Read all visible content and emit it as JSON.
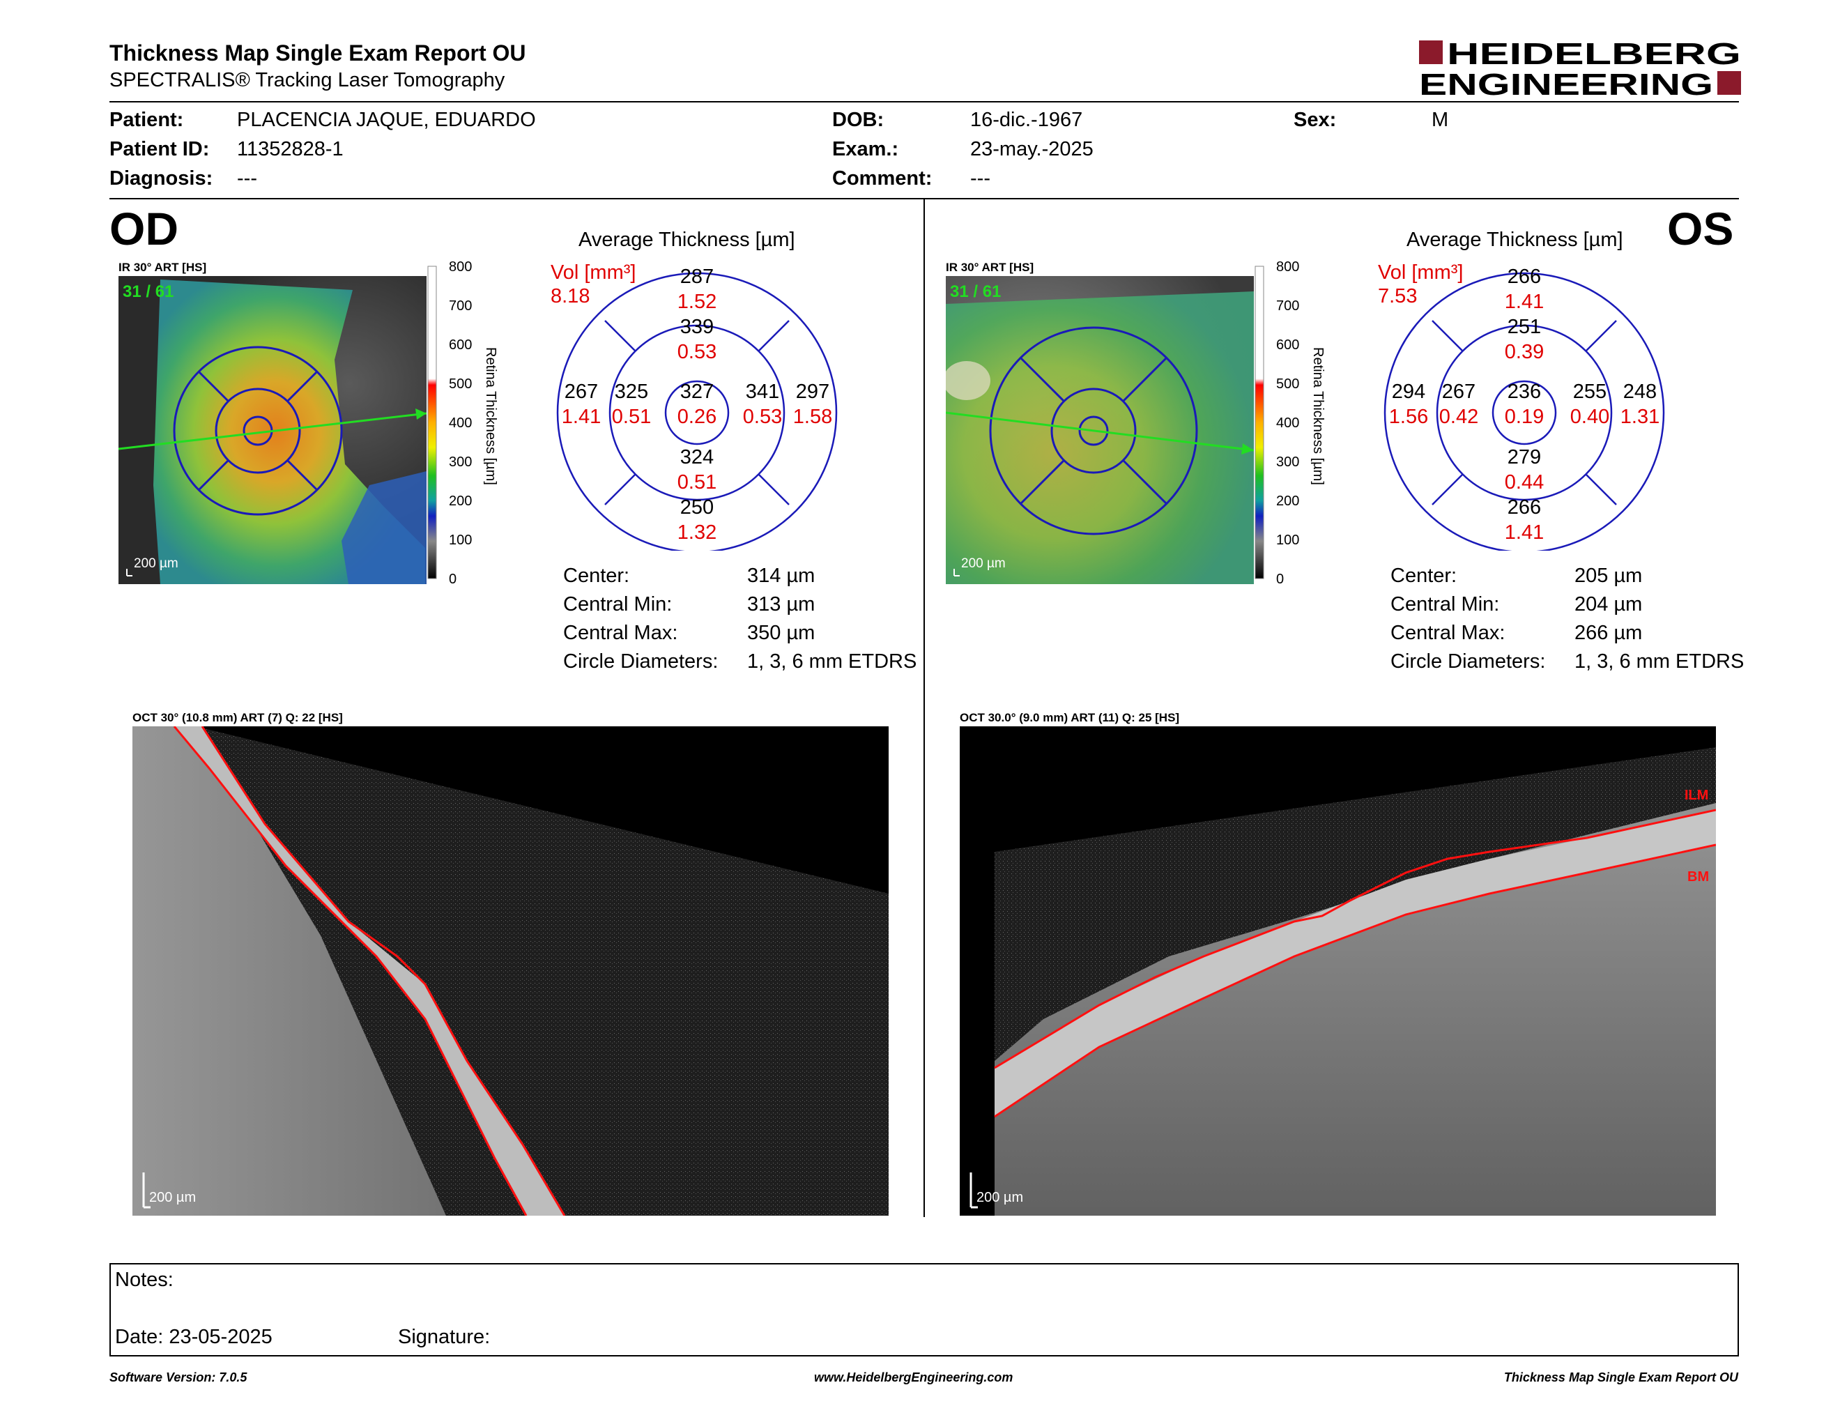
{
  "header": {
    "title": "Thickness Map Single Exam Report OU",
    "subtitle": "SPECTRALIS® Tracking Laser Tomography",
    "logo_line1": "HEIDELBERG",
    "logo_line2": "ENGINEERING"
  },
  "patient": {
    "name_label": "Patient:",
    "name": "PLACENCIA JAQUE, EDUARDO",
    "id_label": "Patient ID:",
    "id": "11352828-1",
    "diagnosis_label": "Diagnosis:",
    "diagnosis": "---",
    "dob_label": "DOB:",
    "dob": "16-dic.-1967",
    "exam_label": "Exam.:",
    "exam": "23-may.-2025",
    "comment_label": "Comment:",
    "comment": "---",
    "sex_label": "Sex:",
    "sex": "M"
  },
  "od": {
    "eye": "OD",
    "ir_caption": "IR 30° ART [HS]",
    "frame": "31 / 61",
    "scale": "200 µm",
    "colorbar_ticks": [
      "800",
      "700",
      "600",
      "500",
      "400",
      "300",
      "200",
      "100",
      "0"
    ],
    "colorbar_label": "Retina Thickness [µm]",
    "avg_title": "Average Thickness [µm]",
    "vol_label": "Vol [mm³]",
    "vol_total": "8.18",
    "sectors": {
      "outer_sup": {
        "t": "287",
        "v": "1.52"
      },
      "inner_sup": {
        "t": "339",
        "v": "0.53"
      },
      "outer_nas": {
        "t": "267",
        "v": "1.41"
      },
      "inner_nas": {
        "t": "325",
        "v": "0.51"
      },
      "center": {
        "t": "327",
        "v": "0.26"
      },
      "inner_tmp": {
        "t": "341",
        "v": "0.53"
      },
      "outer_tmp": {
        "t": "297",
        "v": "1.58"
      },
      "inner_inf": {
        "t": "324",
        "v": "0.51"
      },
      "outer_inf": {
        "t": "250",
        "v": "1.32"
      }
    },
    "stats": [
      {
        "label": "Center:",
        "value": "314 µm"
      },
      {
        "label": "Central Min:",
        "value": "313 µm"
      },
      {
        "label": "Central Max:",
        "value": "350 µm"
      },
      {
        "label": "Circle Diameters:",
        "value": "1, 3, 6 mm ETDRS"
      }
    ],
    "oct_caption": "OCT 30° (10.8 mm) ART (7) Q: 22 [HS]",
    "oct_scale": "200 µm"
  },
  "os": {
    "eye": "OS",
    "ir_caption": "IR 30° ART [HS]",
    "frame": "31 / 61",
    "scale": "200 µm",
    "colorbar_ticks": [
      "800",
      "700",
      "600",
      "500",
      "400",
      "300",
      "200",
      "100",
      "0"
    ],
    "colorbar_label": "Retina Thickness [µm]",
    "avg_title": "Average Thickness [µm]",
    "vol_label": "Vol [mm³]",
    "vol_total": "7.53",
    "sectors": {
      "outer_sup": {
        "t": "266",
        "v": "1.41"
      },
      "inner_sup": {
        "t": "251",
        "v": "0.39"
      },
      "outer_tmp": {
        "t": "294",
        "v": "1.56"
      },
      "inner_tmp": {
        "t": "267",
        "v": "0.42"
      },
      "center": {
        "t": "236",
        "v": "0.19"
      },
      "inner_nas": {
        "t": "255",
        "v": "0.40"
      },
      "outer_nas": {
        "t": "248",
        "v": "1.31"
      },
      "inner_inf": {
        "t": "279",
        "v": "0.44"
      },
      "outer_inf": {
        "t": "266",
        "v": "1.41"
      }
    },
    "stats": [
      {
        "label": "Center:",
        "value": "205 µm"
      },
      {
        "label": "Central Min:",
        "value": "204 µm"
      },
      {
        "label": "Central Max:",
        "value": "266 µm"
      },
      {
        "label": "Circle Diameters:",
        "value": "1, 3, 6 mm ETDRS"
      }
    ],
    "oct_caption": "OCT 30.0° (9.0 mm) ART (11) Q: 25 [HS]",
    "oct_scale": "200 µm",
    "oct_labels": {
      "ilm": "ILM",
      "bm": "BM"
    }
  },
  "notes": {
    "notes_label": "Notes:",
    "date_label": "Date: 23-05-2025",
    "signature_label": "Signature:"
  },
  "footer": {
    "left": "Software Version: 7.0.5",
    "center": "www.HeidelbergEngineering.com",
    "right": "Thickness Map Single Exam Report OU"
  },
  "colors": {
    "accent": "#8b1a2b",
    "red": "#e00000",
    "blue": "#1515c8",
    "green": "#22dd22"
  }
}
